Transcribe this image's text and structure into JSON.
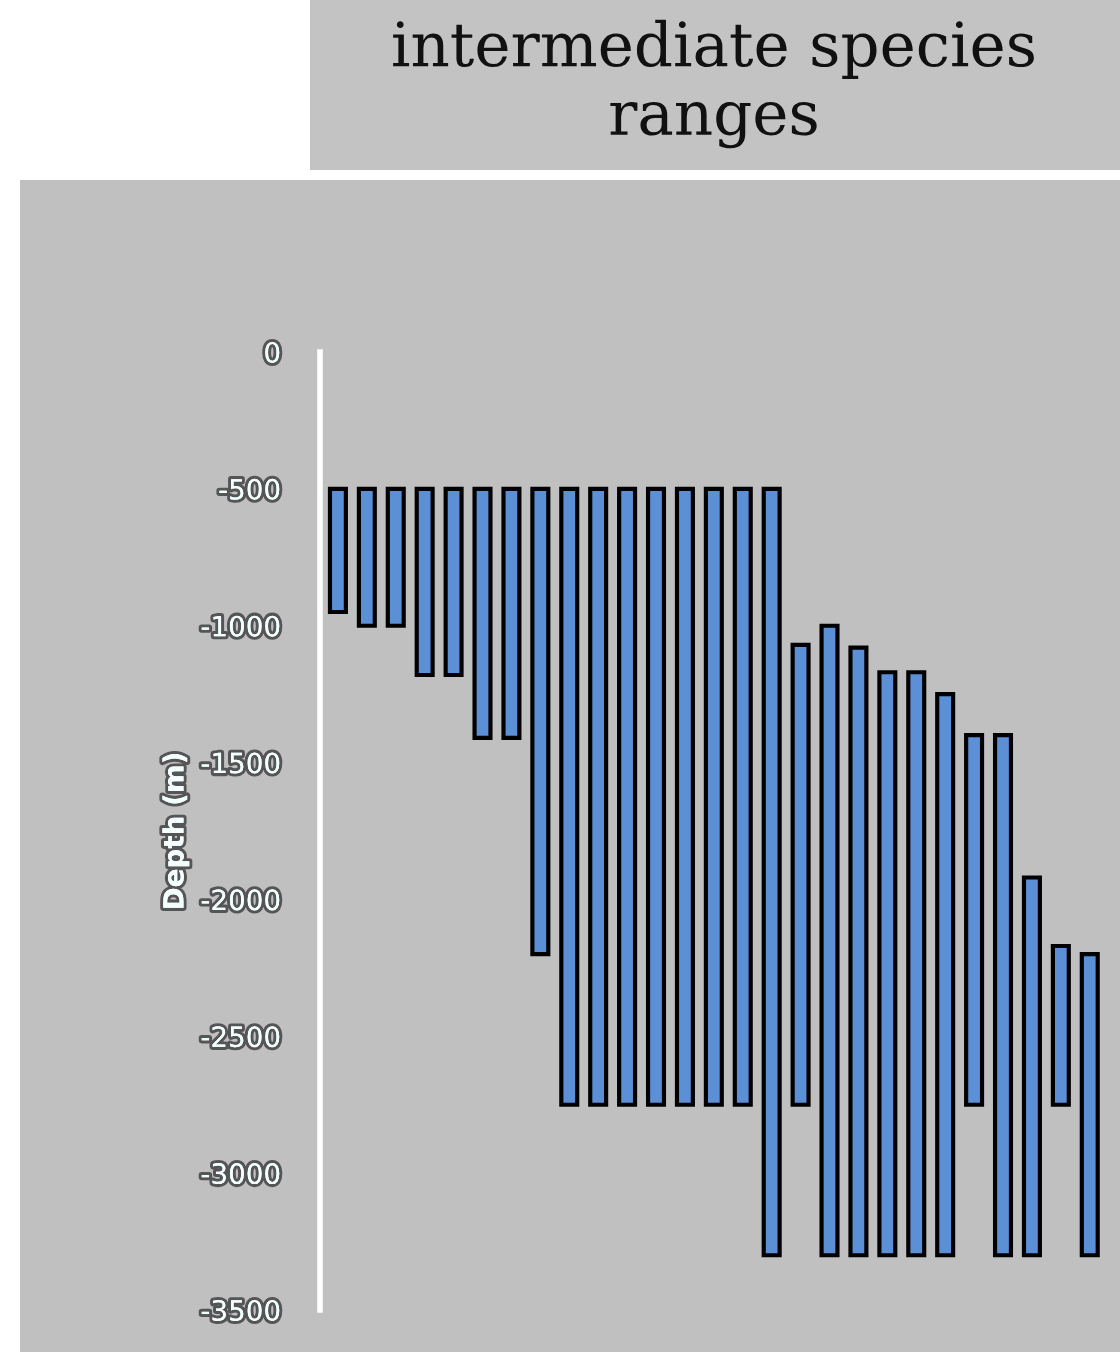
{
  "chart_data": {
    "type": "bar",
    "title": "intermediate species ranges",
    "ylabel": "Depth (m)",
    "categories": [
      null,
      null,
      null,
      null,
      null,
      null,
      null,
      null,
      null,
      null,
      null,
      null,
      null,
      null,
      null,
      null,
      null,
      null,
      null,
      null,
      null,
      null,
      null,
      null,
      null,
      null,
      null
    ],
    "base": [
      -500,
      -500,
      -500,
      -500,
      -500,
      -500,
      -500,
      -500,
      -500,
      -500,
      -500,
      -500,
      -500,
      -500,
      -500,
      -500,
      -1070,
      -1000,
      -1080,
      -1170,
      -1170,
      -1250,
      -1400,
      -1400,
      -1920,
      -2170,
      -2200
    ],
    "values": [
      -450,
      -500,
      -500,
      -680,
      -680,
      -910,
      -910,
      -1700,
      -2250,
      -2250,
      -2250,
      -2250,
      -2250,
      -2250,
      -2250,
      -2800,
      -1680,
      -2300,
      -2220,
      -2130,
      -2130,
      -2050,
      -1350,
      -1900,
      -1380,
      -580,
      -1100
    ],
    "color": "#5b8fd6",
    "ylim": [
      -3500,
      0
    ],
    "yticks": [
      0,
      -500,
      -1000,
      -1500,
      -2000,
      -2500,
      -3000,
      -3500
    ],
    "grid": false,
    "legend": false
  }
}
